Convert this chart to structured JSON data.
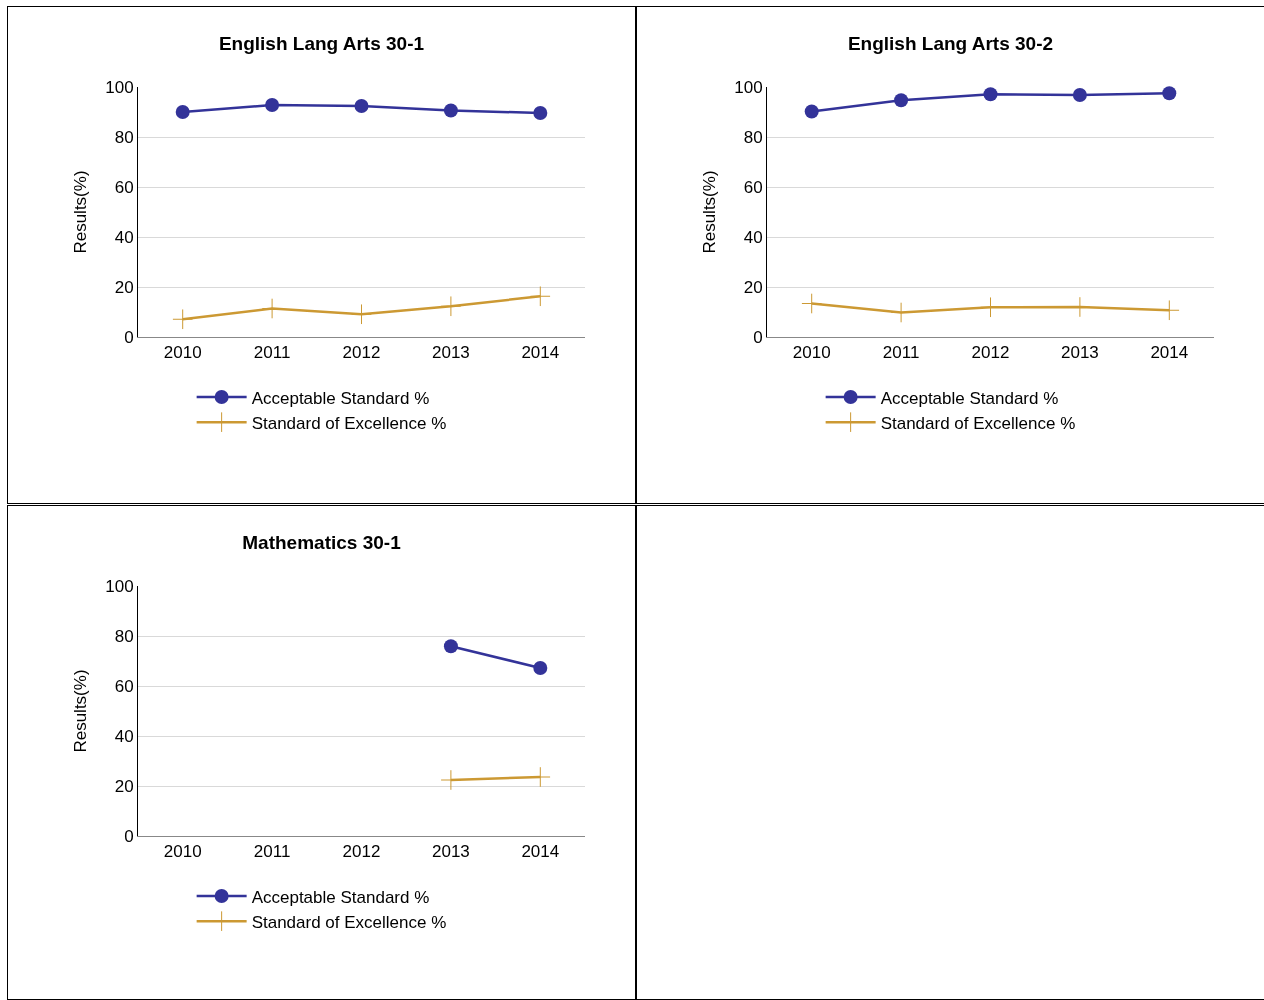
{
  "chart_data": [
    {
      "type": "line",
      "title": "English Lang Arts 30-1",
      "ylabel": "Results(%)",
      "categories": [
        "2010",
        "2011",
        "2012",
        "2013",
        "2014"
      ],
      "ylim": [
        0,
        100
      ],
      "yticks": [
        0,
        20,
        40,
        60,
        80,
        100
      ],
      "grid": "y",
      "legend": "bottom",
      "series": [
        {
          "name": "Acceptable Standard %",
          "color": "#333399",
          "marker": "circle",
          "values": [
            90.0,
            92.8,
            92.4,
            90.6,
            89.6
          ]
        },
        {
          "name": "Standard of Excellence %",
          "color": "#cc9933",
          "marker": "cross",
          "values": [
            7.1,
            11.4,
            9.1,
            12.3,
            16.3
          ]
        }
      ]
    },
    {
      "type": "line",
      "title": "English Lang Arts 30-2",
      "ylabel": "Results(%)",
      "categories": [
        "2010",
        "2011",
        "2012",
        "2013",
        "2014"
      ],
      "ylim": [
        0,
        100
      ],
      "yticks": [
        0,
        20,
        40,
        60,
        80,
        100
      ],
      "grid": "y",
      "legend": "bottom",
      "series": [
        {
          "name": "Acceptable Standard %",
          "color": "#333399",
          "marker": "circle",
          "values": [
            90.2,
            94.7,
            97.1,
            96.8,
            97.5
          ]
        },
        {
          "name": "Standard of Excellence %",
          "color": "#cc9933",
          "marker": "cross",
          "values": [
            13.4,
            9.8,
            11.9,
            12.0,
            10.7
          ]
        }
      ]
    },
    {
      "type": "line",
      "title": "Mathematics 30-1",
      "ylabel": "Results(%)",
      "categories": [
        "2010",
        "2011",
        "2012",
        "2013",
        "2014"
      ],
      "ylim": [
        0,
        100
      ],
      "yticks": [
        0,
        20,
        40,
        60,
        80,
        100
      ],
      "grid": "y",
      "legend": "bottom",
      "series": [
        {
          "name": "Acceptable Standard %",
          "color": "#333399",
          "marker": "circle",
          "values": [
            null,
            null,
            null,
            75.9,
            67.2
          ]
        },
        {
          "name": "Standard of Excellence %",
          "color": "#cc9933",
          "marker": "cross",
          "values": [
            null,
            null,
            null,
            22.4,
            23.6
          ]
        }
      ]
    }
  ]
}
